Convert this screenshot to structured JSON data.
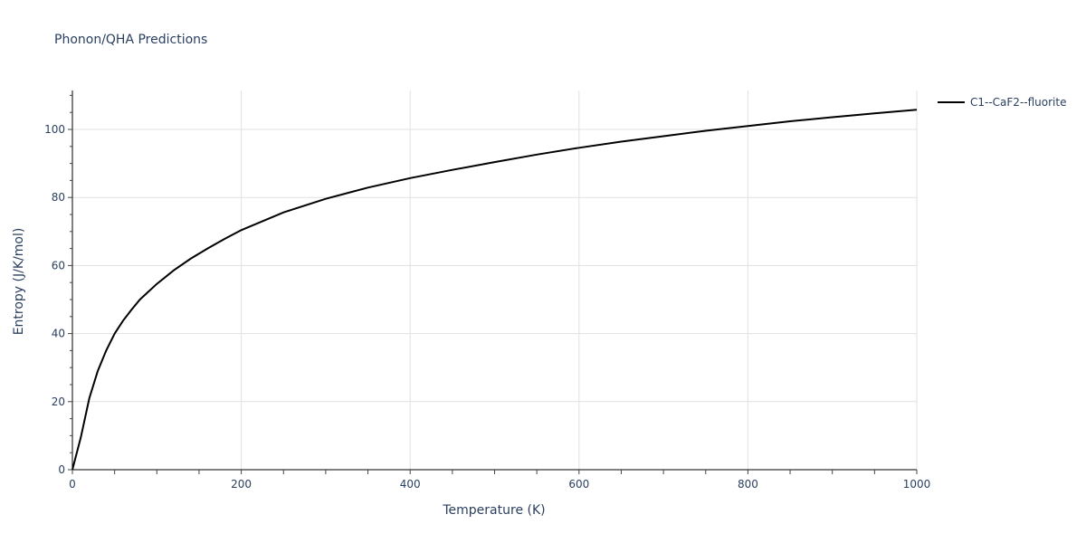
{
  "title": "Phonon/QHA Predictions",
  "legend": {
    "items": [
      {
        "label": "C1--CaF2--fluorite",
        "color": "#000000"
      }
    ]
  },
  "chart_data": {
    "type": "line",
    "title": "Phonon/QHA Predictions",
    "xlabel": "Temperature (K)",
    "ylabel": "Entropy (J/K/mol)",
    "xlim": [
      0,
      1000
    ],
    "ylim": [
      0,
      111
    ],
    "x_ticks": [
      0,
      200,
      400,
      600,
      800,
      1000
    ],
    "y_ticks": [
      0,
      20,
      40,
      60,
      80,
      100
    ],
    "grid": true,
    "legend_position": "right",
    "series": [
      {
        "name": "C1--CaF2--fluorite",
        "color": "#000000",
        "x": [
          0,
          10,
          20,
          30,
          40,
          50,
          60,
          70,
          80,
          100,
          120,
          140,
          160,
          180,
          200,
          250,
          300,
          350,
          400,
          450,
          500,
          550,
          600,
          650,
          700,
          750,
          800,
          850,
          900,
          950,
          1000
        ],
        "y": [
          0,
          9.5,
          21,
          29,
          35,
          40,
          43.8,
          47,
          50,
          54.6,
          58.6,
          62,
          65,
          67.8,
          70.4,
          75.6,
          79.6,
          82.9,
          85.7,
          88.1,
          90.4,
          92.6,
          94.6,
          96.4,
          98,
          99.6,
          101,
          102.4,
          103.6,
          104.7,
          105.8
        ]
      }
    ]
  }
}
